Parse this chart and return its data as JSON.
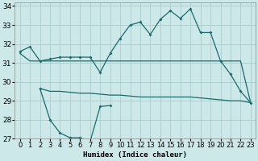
{
  "xlabel": "Humidex (Indice chaleur)",
  "bg_color": "#cce8e8",
  "grid_color": "#aacccc",
  "line_color": "#1a6b6b",
  "xlim": [
    -0.5,
    23.5
  ],
  "ylim": [
    27,
    34.2
  ],
  "yticks": [
    27,
    28,
    29,
    30,
    31,
    32,
    33,
    34
  ],
  "xticks": [
    0,
    1,
    2,
    3,
    4,
    5,
    6,
    7,
    8,
    9,
    10,
    11,
    12,
    13,
    14,
    15,
    16,
    17,
    18,
    19,
    20,
    21,
    22,
    23
  ],
  "line1_x": [
    0,
    1,
    2,
    3,
    4,
    5,
    6,
    7,
    8,
    9,
    10,
    11,
    12,
    13,
    14,
    15,
    16,
    17,
    18,
    19,
    20,
    21,
    22,
    23
  ],
  "line1_y": [
    31.6,
    31.85,
    31.1,
    31.2,
    31.3,
    31.3,
    31.3,
    31.3,
    30.5,
    31.5,
    32.3,
    33.0,
    33.15,
    32.5,
    33.3,
    33.75,
    33.35,
    33.85,
    32.6,
    32.6,
    31.1,
    30.4,
    29.5,
    28.9
  ],
  "line2_x": [
    0,
    1,
    2,
    3,
    4,
    5,
    6,
    7,
    8,
    9,
    10,
    11,
    12,
    13,
    14,
    15,
    16,
    17,
    18,
    19,
    20,
    21,
    22,
    23
  ],
  "line2_y": [
    31.5,
    31.1,
    31.1,
    31.1,
    31.1,
    31.1,
    31.1,
    31.1,
    31.1,
    31.1,
    31.1,
    31.1,
    31.1,
    31.1,
    31.1,
    31.1,
    31.1,
    31.1,
    31.1,
    31.1,
    31.1,
    31.1,
    31.1,
    28.9
  ],
  "line3_x": [
    2,
    3,
    4,
    5,
    6,
    7,
    8,
    9,
    10,
    11,
    12,
    13,
    14,
    15,
    16,
    17,
    18,
    19,
    20,
    21,
    22,
    23
  ],
  "line3_y": [
    29.65,
    29.5,
    29.5,
    29.45,
    29.4,
    29.4,
    29.35,
    29.3,
    29.3,
    29.25,
    29.2,
    29.2,
    29.2,
    29.2,
    29.2,
    29.2,
    29.15,
    29.1,
    29.05,
    29.0,
    29.0,
    28.9
  ],
  "line4_x": [
    2,
    3,
    4,
    5,
    6,
    7,
    8,
    9
  ],
  "line4_y": [
    29.65,
    28.0,
    27.3,
    27.05,
    27.05,
    26.85,
    28.7,
    28.75
  ],
  "marker_size": 2,
  "linewidth": 0.9,
  "font_size": 6.5
}
